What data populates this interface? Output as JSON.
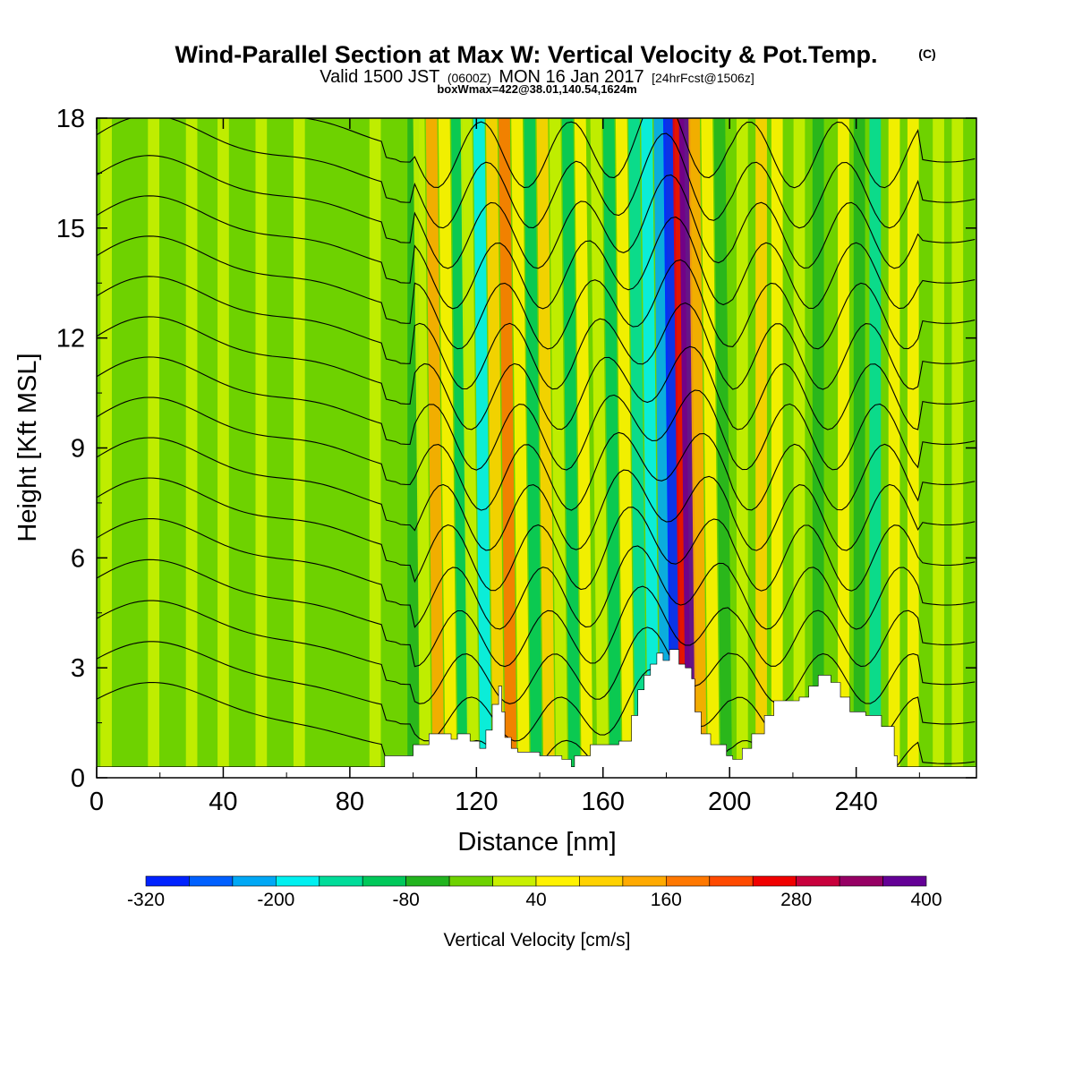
{
  "header": {
    "title_main": "Wind-Parallel Section at Max W: Vertical Velocity & Pot.Temp.",
    "title_mark": "(C)",
    "valid_a": "Valid 1500 JST",
    "valid_b": "(0600Z)",
    "valid_c": "MON 16 Jan 2017",
    "valid_d": "[24hrFcst@1506z]",
    "box_info": "boxWmax=422@38.01,140.54,1624m"
  },
  "colorbar": {
    "label": "Vertical Velocity [cm/s]",
    "levels": [
      -320,
      -280,
      -240,
      -200,
      -160,
      -120,
      -80,
      -40,
      0,
      40,
      80,
      120,
      160,
      200,
      240,
      280,
      320,
      360,
      400
    ],
    "tick_values": [
      -320,
      -200,
      -80,
      40,
      160,
      280,
      400
    ],
    "tick_labels": [
      "-320",
      "-200",
      "-80",
      "40",
      "160",
      "280",
      "400"
    ],
    "colors": [
      "#0022ff",
      "#0060ff",
      "#00a8f5",
      "#00f0f0",
      "#00dc99",
      "#00c85a",
      "#22b41e",
      "#6ed200",
      "#c8f000",
      "#fff200",
      "#ffd200",
      "#ffaa00",
      "#ff7800",
      "#ff4a00",
      "#f00000",
      "#c8003c",
      "#960064",
      "#640096"
    ]
  },
  "chart_data": {
    "type": "heatmap",
    "title": "Wind-Parallel Section at Max W: Vertical Velocity & Pot.Temp.",
    "xlabel": "Distance [nm]",
    "ylabel": "Height [Kft MSL]",
    "xlim": [
      0,
      278
    ],
    "ylim": [
      0,
      18
    ],
    "x_ticks": [
      0,
      40,
      80,
      120,
      160,
      200,
      240
    ],
    "x_tick_labels": [
      "0",
      "40",
      "80",
      "120",
      "160",
      "200",
      "240"
    ],
    "y_ticks": [
      0,
      3,
      6,
      9,
      12,
      15,
      18
    ],
    "y_tick_labels": [
      "0",
      "3",
      "6",
      "9",
      "12",
      "15",
      "18"
    ],
    "field_units": "cm/s",
    "max_w": 422,
    "terrain_kft": [
      [
        0,
        0.3
      ],
      [
        90,
        0.3
      ],
      [
        91,
        0.6
      ],
      [
        100,
        0.9
      ],
      [
        105,
        1.2
      ],
      [
        109,
        1.2
      ],
      [
        112,
        1.05
      ],
      [
        114,
        1.2
      ],
      [
        118,
        1.0
      ],
      [
        121,
        0.8
      ],
      [
        123,
        1.3
      ],
      [
        125,
        2.0
      ],
      [
        127,
        2.5
      ],
      [
        128,
        1.8
      ],
      [
        129,
        1.1
      ],
      [
        131,
        0.8
      ],
      [
        133,
        0.7
      ],
      [
        140,
        0.6
      ],
      [
        147,
        0.5
      ],
      [
        150,
        0.3
      ],
      [
        151,
        0.6
      ],
      [
        156,
        0.9
      ],
      [
        160,
        0.9
      ],
      [
        165,
        1.0
      ],
      [
        169,
        1.7
      ],
      [
        171,
        2.4
      ],
      [
        173,
        2.8
      ],
      [
        175,
        3.1
      ],
      [
        177,
        3.4
      ],
      [
        179,
        3.2
      ],
      [
        181,
        3.5
      ],
      [
        184,
        3.1
      ],
      [
        186,
        3.0
      ],
      [
        188,
        2.7
      ],
      [
        189,
        1.8
      ],
      [
        191,
        1.2
      ],
      [
        194,
        0.9
      ],
      [
        199,
        0.6
      ],
      [
        201,
        0.5
      ],
      [
        204,
        0.8
      ],
      [
        207,
        1.2
      ],
      [
        211,
        1.7
      ],
      [
        214,
        2.1
      ],
      [
        222,
        2.2
      ],
      [
        225,
        2.5
      ],
      [
        228,
        2.8
      ],
      [
        232,
        2.6
      ],
      [
        235,
        2.2
      ],
      [
        238,
        1.8
      ],
      [
        243,
        1.7
      ],
      [
        248,
        1.4
      ],
      [
        252,
        0.6
      ],
      [
        253,
        0.3
      ],
      [
        278,
        0.3
      ]
    ],
    "theta_isolines_base_kft": [
      0.9,
      2.0,
      3.1,
      4.2,
      5.3,
      6.4,
      7.5,
      8.6,
      9.7,
      10.8,
      11.9,
      13.0,
      14.1,
      15.2,
      16.3,
      17.4
    ]
  }
}
